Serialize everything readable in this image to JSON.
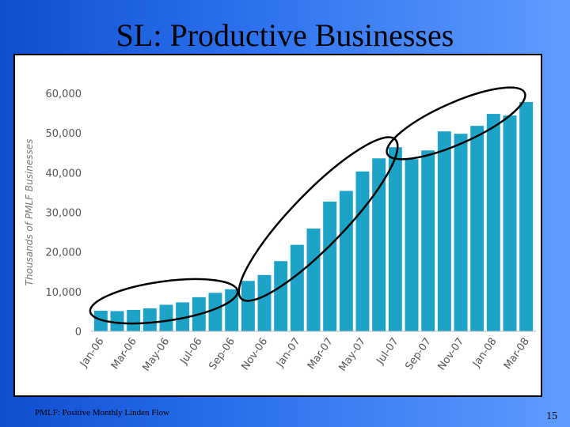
{
  "slide": {
    "title": "SL:  Productive Businesses",
    "footnote": "PMLF:  Positive Monthly Linden Flow",
    "page_number": "15"
  },
  "colors": {
    "background_left": "#0e4fcf",
    "background_right": "#5f9cff",
    "bar": "#1ea3c8",
    "ellipse_stroke": "#000000"
  },
  "chart_data": {
    "type": "bar",
    "ylabel": "Thousands of PMLF Businesses",
    "xlabel": "",
    "ylim": [
      0,
      60000
    ],
    "y_ticks": [
      "0",
      "10,000",
      "20,000",
      "30,000",
      "40,000",
      "50,000",
      "60,000"
    ],
    "categories": [
      "Jan-06",
      "Feb-06",
      "Mar-06",
      "Apr-06",
      "May-06",
      "Jun-06",
      "Jul-06",
      "Aug-06",
      "Sep-06",
      "Oct-06",
      "Nov-06",
      "Dec-06",
      "Jan-07",
      "Feb-07",
      "Mar-07",
      "Apr-07",
      "May-07",
      "Jun-07",
      "Jul-07",
      "Aug-07",
      "Sep-07",
      "Oct-07",
      "Nov-07",
      "Dec-07",
      "Jan-08",
      "Feb-08",
      "Mar-08"
    ],
    "x_tick_labels": [
      "Jan-06",
      "Mar-06",
      "May-06",
      "Jul-06",
      "Sep-06",
      "Nov-06",
      "Jan-07",
      "Mar-07",
      "May-07",
      "Jul-07",
      "Sep-07",
      "Nov-07",
      "Jan-08",
      "Mar-08"
    ],
    "values": [
      5200,
      5100,
      5400,
      5800,
      6700,
      7300,
      8600,
      9700,
      10600,
      12700,
      14200,
      17700,
      21800,
      25900,
      32700,
      35400,
      40300,
      43600,
      46400,
      43400,
      45600,
      50400,
      49800,
      51800,
      54800,
      54400,
      57800
    ],
    "grid": false,
    "legend": "none"
  }
}
